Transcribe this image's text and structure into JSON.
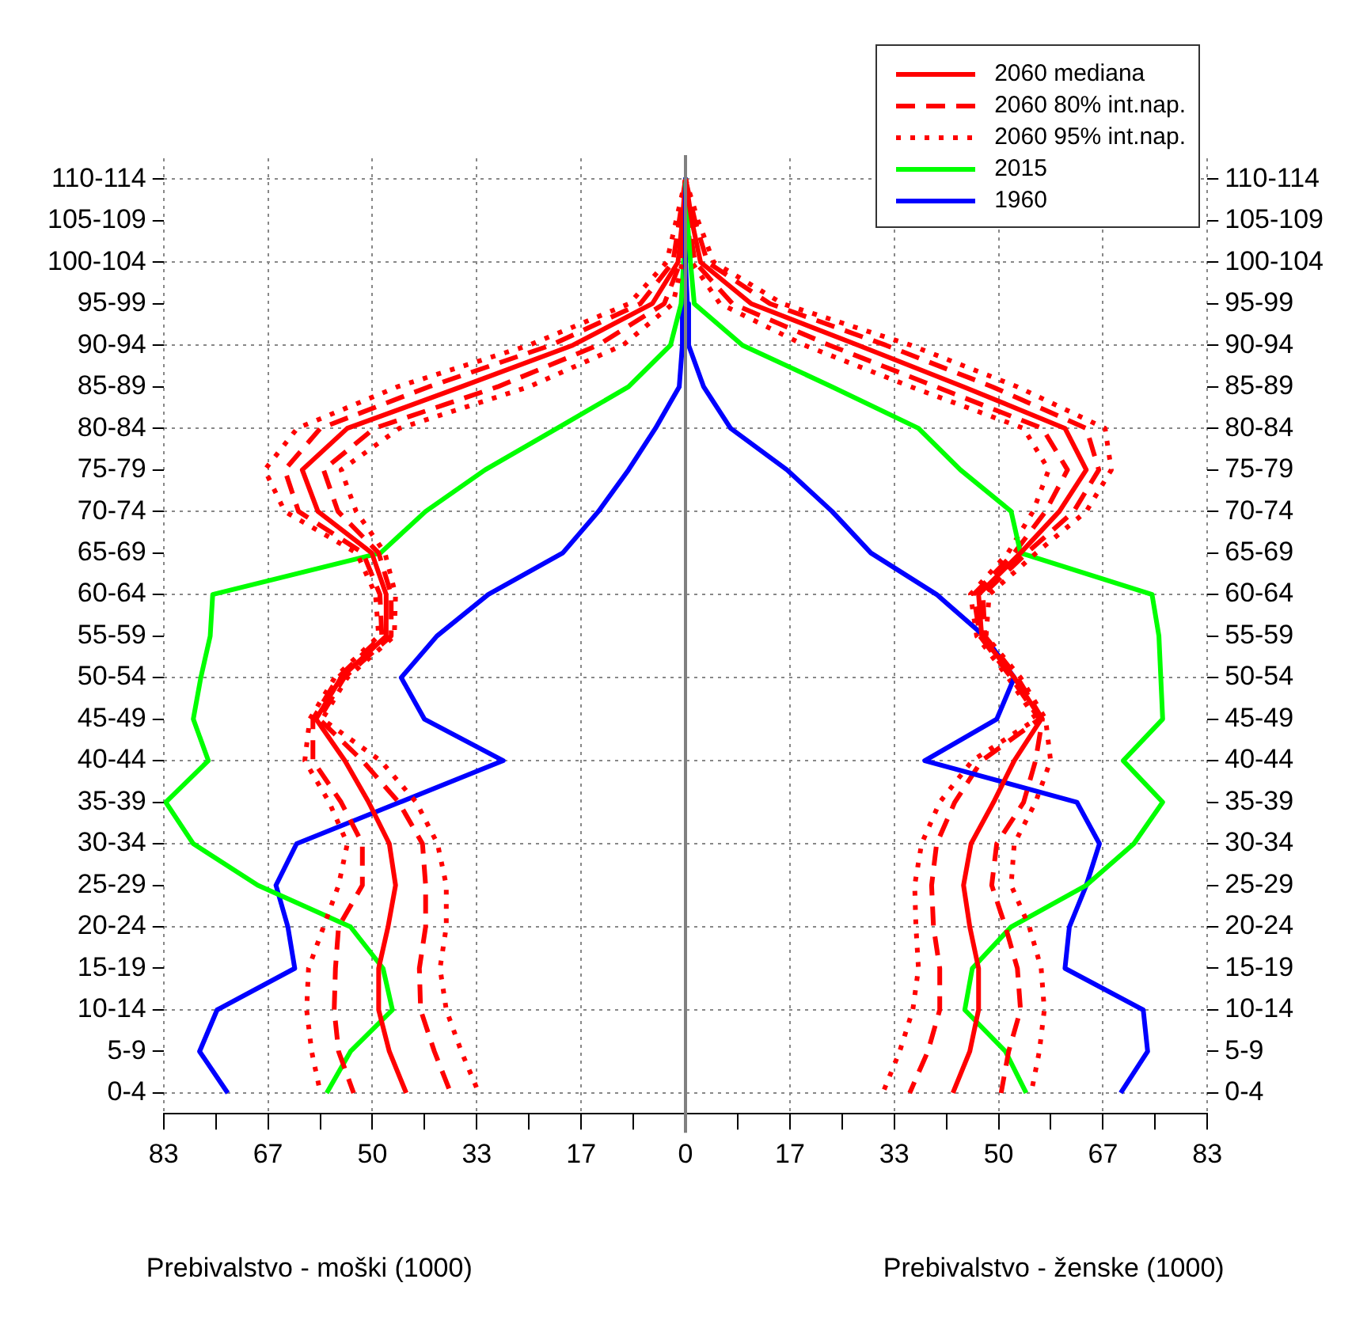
{
  "chart_data": {
    "type": "line",
    "orientation": "horizontal",
    "annotations": [
      "Prebivalstvo - moški (1000)",
      "Prebivalstvo - ženske (1000)"
    ],
    "ref_lines": [
      {
        "axis": "x",
        "value": 0,
        "color": "#808080"
      }
    ],
    "categories": [
      "110-114",
      "105-109",
      "100-104",
      "95-99",
      "90-94",
      "85-89",
      "80-84",
      "75-79",
      "70-74",
      "65-69",
      "60-64",
      "55-59",
      "50-54",
      "45-49",
      "40-44",
      "35-39",
      "30-34",
      "25-29",
      "20-24",
      "15-19",
      "10-14",
      "5-9",
      "0-4"
    ],
    "y2_categories": [
      "110-114",
      "105-109",
      "100-104",
      "95-99",
      "90-94",
      "85-89",
      "80-84",
      "75-79",
      "70-74",
      "65-69",
      "60-64",
      "55-59",
      "50-54",
      "45-49",
      "40-44",
      "35-39",
      "30-34",
      "25-29",
      "20-24",
      "15-19",
      "10-14",
      "5-9",
      "0-4"
    ],
    "xlim": [
      -83.33,
      83.33
    ],
    "xticks": [
      {
        "value": -83.33,
        "label": "83"
      },
      {
        "value": -75,
        "label": null
      },
      {
        "value": -66.67,
        "label": "67"
      },
      {
        "value": -58.33,
        "label": null
      },
      {
        "value": -50,
        "label": "50"
      },
      {
        "value": -41.67,
        "label": null
      },
      {
        "value": -33.33,
        "label": "33"
      },
      {
        "value": -25,
        "label": null
      },
      {
        "value": -16.67,
        "label": "17"
      },
      {
        "value": -8.33,
        "label": null
      },
      0,
      {
        "value": 8.33,
        "label": null
      },
      {
        "value": 16.67,
        "label": "17"
      },
      {
        "value": 25,
        "label": null
      },
      {
        "value": 33.33,
        "label": "33"
      },
      {
        "value": 41.67,
        "label": null
      },
      {
        "value": 50,
        "label": "50"
      },
      {
        "value": 58.33,
        "label": null
      },
      {
        "value": 66.67,
        "label": "67"
      },
      {
        "value": 75,
        "label": null
      },
      {
        "value": 83.33,
        "label": "83"
      }
    ],
    "grid": true,
    "legend": "top right",
    "series": [
      {
        "name": "2060 mediana",
        "color": "#ff0000",
        "line_style": "solid",
        "values": [
          0,
          1,
          2.4,
          10.5,
          27.6,
          44.4,
          60.6,
          64,
          59.7,
          53.5,
          46.8,
          47.3,
          52.5,
          56.8,
          52.5,
          49.2,
          45.6,
          44.4,
          45.4,
          46.8,
          46.8,
          45.4,
          42.7
        ]
      },
      {
        "name": "2060 80% int.nap.",
        "color": "#ff0000",
        "line_style": "dashed",
        "values": [
          0,
          1.5,
          3.5,
          13.5,
          32,
          49,
          64,
          66,
          62,
          54.5,
          47.5,
          47.8,
          53,
          57,
          55.9,
          54,
          49.7,
          48.9,
          51.1,
          53,
          53.5,
          51.6,
          50.4
        ]
      },
      {
        "name": "2060 95% int.nap.",
        "color": "#ff0000",
        "line_style": "dotted",
        "values": [
          0,
          2,
          4.5,
          15.5,
          36,
          53,
          67,
          68,
          64,
          56,
          48.5,
          48,
          53.5,
          57.5,
          58.3,
          55.9,
          52.5,
          52,
          54.9,
          56.8,
          57.3,
          56.5,
          55.2
        ]
      },
      {
        "name": "2015",
        "color": "#00ff00",
        "line_style": "solid",
        "values": [
          0,
          0.3,
          0.8,
          1.4,
          9.1,
          23.4,
          37.2,
          43.9,
          52,
          53.5,
          74.5,
          75.6,
          75.9,
          76.2,
          69.9,
          76.2,
          71.6,
          64,
          52,
          45.8,
          44.6,
          51.1,
          54.4
        ]
      },
      {
        "name": "1960",
        "color": "#0000ff",
        "line_style": "solid",
        "values": [
          0,
          0,
          0,
          0.3,
          0.5,
          2.9,
          7.2,
          16.2,
          23.4,
          29.6,
          40.1,
          47.7,
          52.5,
          49.7,
          38.2,
          62.5,
          66.1,
          64,
          61.3,
          60.6,
          73.1,
          73.8,
          69.5
        ]
      },
      {
        "color": "#ff0000",
        "line_style": "dashed",
        "values": [
          0,
          0.5,
          1.5,
          7.5,
          23,
          40,
          57,
          61,
          57.5,
          52.5,
          46,
          47,
          52,
          56.5,
          47.3,
          43,
          40.1,
          39.3,
          39.6,
          40.6,
          40.6,
          38.7,
          35.8
        ]
      },
      {
        "color": "#ff0000",
        "line_style": "dotted",
        "values": [
          0,
          0.3,
          1,
          5.5,
          19,
          36,
          54,
          58,
          55.5,
          51.5,
          45.5,
          46.5,
          51.5,
          56,
          45.8,
          40.6,
          37.7,
          36.6,
          36.8,
          37.2,
          36.3,
          34.2,
          31.5
        ]
      },
      {
        "color": "#ff0000",
        "line_style": "solid",
        "values": [
          0,
          -0.5,
          -1.2,
          -5.3,
          -18,
          -35.8,
          -54,
          -61.2,
          -58.7,
          -50.1,
          -47.8,
          -47.8,
          -55,
          -59,
          -54.4,
          -50.6,
          -47.3,
          -46.3,
          -47.5,
          -49,
          -49,
          -47.3,
          -44.6
        ]
      },
      {
        "color": "#ff0000",
        "line_style": "dashed",
        "values": [
          0,
          -1,
          -2,
          -7.2,
          -21.5,
          -41,
          -58.3,
          -64,
          -61.8,
          -51.5,
          -48.8,
          -48.5,
          -55.5,
          -59.5,
          -59.5,
          -55,
          -51.6,
          -51.6,
          -55.4,
          -55.9,
          -56.1,
          -55.4,
          -53
        ]
      },
      {
        "color": "#ff0000",
        "line_style": "dashed",
        "values": [
          0,
          -0.3,
          -0.8,
          -3.4,
          -14,
          -30,
          -49.7,
          -57.8,
          -55.5,
          -49,
          -47,
          -47,
          -54.5,
          -58.5,
          -51.6,
          -45.8,
          -42,
          -41.5,
          -41.5,
          -42.5,
          -42.3,
          -40.1,
          -37.5
        ]
      },
      {
        "color": "#ff0000",
        "line_style": "dotted",
        "values": [
          0,
          -1.5,
          -3,
          -9,
          -25,
          -46,
          -62,
          -67.2,
          -64,
          -52.5,
          -49.5,
          -49,
          -56,
          -60,
          -60.8,
          -56.9,
          -54,
          -55.4,
          -57.8,
          -60.2,
          -60.5,
          -59.7,
          -58.3
        ]
      },
      {
        "color": "#ff0000",
        "line_style": "dotted",
        "values": [
          0,
          0,
          -0.5,
          -2,
          -10,
          -25,
          -45.7,
          -55,
          -52.6,
          -48,
          -46.3,
          -46.5,
          -54,
          -58,
          -48.7,
          -43,
          -39.6,
          -38.2,
          -38.2,
          -39.2,
          -38.2,
          -35.8,
          -33
        ]
      },
      {
        "color": "#00ff00",
        "line_style": "solid",
        "values": [
          0,
          0,
          -0.3,
          -0.7,
          -2.4,
          -9.1,
          -20.5,
          -32,
          -41.5,
          -48.7,
          -75.5,
          -75.9,
          -77.4,
          -78.6,
          -76.2,
          -83,
          -78.6,
          -68.3,
          -53.5,
          -48.3,
          -46.8,
          -53.5,
          -57.3
        ]
      },
      {
        "color": "#0000ff",
        "line_style": "solid",
        "values": [
          0,
          0,
          0,
          -0.3,
          -0.5,
          -1,
          -4.8,
          -9.1,
          -13.9,
          -19.6,
          -31.5,
          -39.7,
          -45.4,
          -41.7,
          -29.1,
          -45.6,
          -62.1,
          -65.4,
          -63.5,
          -62.4,
          -74.8,
          -77.6,
          -73.1
        ]
      }
    ]
  }
}
